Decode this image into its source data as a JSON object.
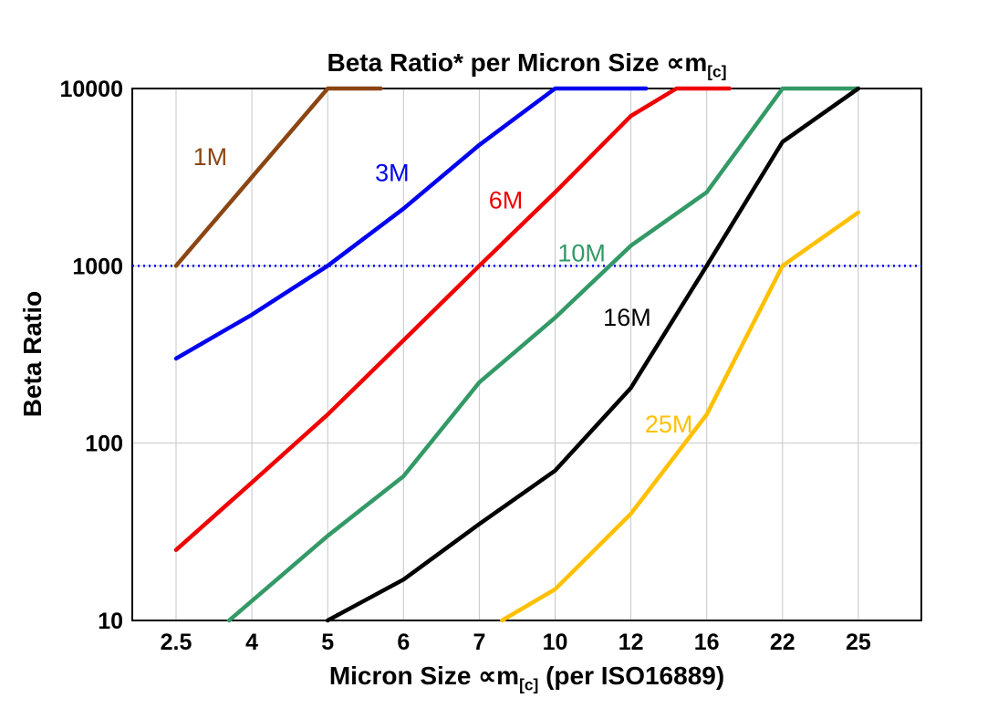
{
  "header": {
    "title_main": "Beta Ratio* per Micron Size ∝m",
    "title_sub": "[c]"
  },
  "axes": {
    "y_label": "Beta Ratio",
    "x_label_main": "Micron Size ∝m",
    "x_label_sub": "[c]",
    "x_label_rest": " (per ISO16889)"
  },
  "chart_data": {
    "type": "line",
    "title": "Beta Ratio* per Micron Size ∝m[c]",
    "xlabel": "Micron Size ∝m[c] (per ISO16889)",
    "ylabel": "Beta Ratio",
    "x_categories": [
      "2.5",
      "4",
      "5",
      "6",
      "7",
      "10",
      "12",
      "16",
      "22",
      "25"
    ],
    "x_scale": "categorical",
    "y_scale": "log",
    "ylim": [
      10,
      10000
    ],
    "y_ticks": [
      10,
      100,
      1000,
      10000
    ],
    "grid": true,
    "legend": "inline-labels",
    "reference_line": {
      "y": 1000,
      "color": "#0000ee",
      "style": "dotted"
    },
    "series": [
      {
        "name": "1M",
        "color": "#8B4513",
        "points": [
          [
            0,
            1000
          ],
          [
            2,
            10000
          ],
          [
            2.7,
            10000
          ]
        ],
        "label": {
          "x": 0.45,
          "y": 3700
        }
      },
      {
        "name": "3M",
        "color": "#0000F0",
        "points": [
          [
            0,
            300
          ],
          [
            1,
            530
          ],
          [
            2,
            1000
          ],
          [
            3,
            2100
          ],
          [
            4,
            4800
          ],
          [
            5,
            10000
          ],
          [
            6.2,
            10000
          ]
        ],
        "label": {
          "x": 2.85,
          "y": 3000
        }
      },
      {
        "name": "6M",
        "color": "#F00000",
        "points": [
          [
            0,
            25
          ],
          [
            1,
            60
          ],
          [
            2,
            145
          ],
          [
            3,
            380
          ],
          [
            4,
            1000
          ],
          [
            5,
            2600
          ],
          [
            6,
            7000
          ],
          [
            6.6,
            10000
          ],
          [
            7.3,
            10000
          ]
        ],
        "label": {
          "x": 4.35,
          "y": 2100
        }
      },
      {
        "name": "10M",
        "color": "#339966",
        "points": [
          [
            0.7,
            10
          ],
          [
            2,
            30
          ],
          [
            3,
            65
          ],
          [
            4,
            220
          ],
          [
            5,
            510
          ],
          [
            6,
            1300
          ],
          [
            7,
            2600
          ],
          [
            8,
            10000
          ],
          [
            9,
            10000
          ]
        ],
        "label": {
          "x": 5.35,
          "y": 1060
        }
      },
      {
        "name": "16M",
        "color": "#000000",
        "points": [
          [
            2,
            10
          ],
          [
            3,
            17
          ],
          [
            4,
            35
          ],
          [
            5,
            70
          ],
          [
            6,
            205
          ],
          [
            7,
            1000
          ],
          [
            8,
            5000
          ],
          [
            9,
            10000
          ]
        ],
        "label": {
          "x": 5.95,
          "y": 460
        }
      },
      {
        "name": "25M",
        "color": "#FFC000",
        "points": [
          [
            4.3,
            10
          ],
          [
            5,
            15
          ],
          [
            6,
            40
          ],
          [
            7,
            145
          ],
          [
            8,
            1000
          ],
          [
            9,
            2000
          ]
        ],
        "label": {
          "x": 6.5,
          "y": 115
        }
      }
    ]
  }
}
